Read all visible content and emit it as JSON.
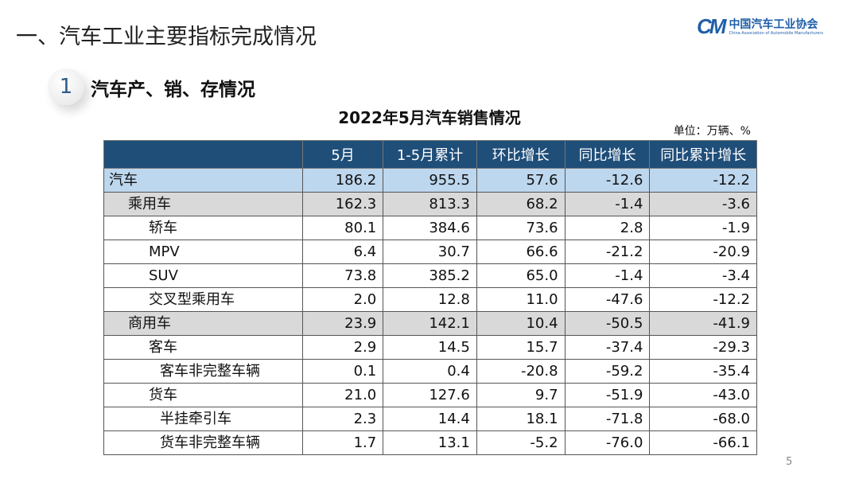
{
  "title": "一、汽车工业主要指标完成情况",
  "logo": {
    "mark": "CM",
    "cn": "中国汽车工业协会",
    "en": "China Association of Automobile Manufacturers"
  },
  "section": {
    "number": "1",
    "title": "汽车产、销、存情况"
  },
  "table": {
    "title": "2022年5月汽车销售情况",
    "unit": "单位：万辆、%",
    "headers": [
      "",
      "5月",
      "1-5月累计",
      "环比增长",
      "同比增长",
      "同比累计增长"
    ],
    "rows": [
      {
        "label": "汽车",
        "level": 0,
        "style": "total",
        "values": [
          "186.2",
          "955.5",
          "57.6",
          "-12.6",
          "-12.2"
        ]
      },
      {
        "label": "乘用车",
        "level": 1,
        "style": "sub",
        "values": [
          "162.3",
          "813.3",
          "68.2",
          "-1.4",
          "-3.6"
        ]
      },
      {
        "label": "轿车",
        "level": 2,
        "style": "",
        "values": [
          "80.1",
          "384.6",
          "73.6",
          "2.8",
          "-1.9"
        ]
      },
      {
        "label": "MPV",
        "level": 2,
        "style": "",
        "values": [
          "6.4",
          "30.7",
          "66.6",
          "-21.2",
          "-20.9"
        ]
      },
      {
        "label": "SUV",
        "level": 2,
        "style": "",
        "values": [
          "73.8",
          "385.2",
          "65.0",
          "-1.4",
          "-3.4"
        ]
      },
      {
        "label": "交叉型乘用车",
        "level": 2,
        "style": "",
        "values": [
          "2.0",
          "12.8",
          "11.0",
          "-47.6",
          "-12.2"
        ]
      },
      {
        "label": "商用车",
        "level": 1,
        "style": "sub",
        "values": [
          "23.9",
          "142.1",
          "10.4",
          "-50.5",
          "-41.9"
        ]
      },
      {
        "label": "客车",
        "level": 2,
        "style": "",
        "values": [
          "2.9",
          "14.5",
          "15.7",
          "-37.4",
          "-29.3"
        ]
      },
      {
        "label": "客车非完整车辆",
        "level": 3,
        "style": "",
        "values": [
          "0.1",
          "0.4",
          "-20.8",
          "-59.2",
          "-35.4"
        ]
      },
      {
        "label": "货车",
        "level": 2,
        "style": "",
        "values": [
          "21.0",
          "127.6",
          "9.7",
          "-51.9",
          "-43.0"
        ]
      },
      {
        "label": "半挂牵引车",
        "level": 3,
        "style": "",
        "values": [
          "2.3",
          "14.4",
          "18.1",
          "-71.8",
          "-68.0"
        ]
      },
      {
        "label": "货车非完整车辆",
        "level": 3,
        "style": "",
        "values": [
          "1.7",
          "13.1",
          "-5.2",
          "-76.0",
          "-66.1"
        ]
      }
    ]
  },
  "page_number": "5"
}
